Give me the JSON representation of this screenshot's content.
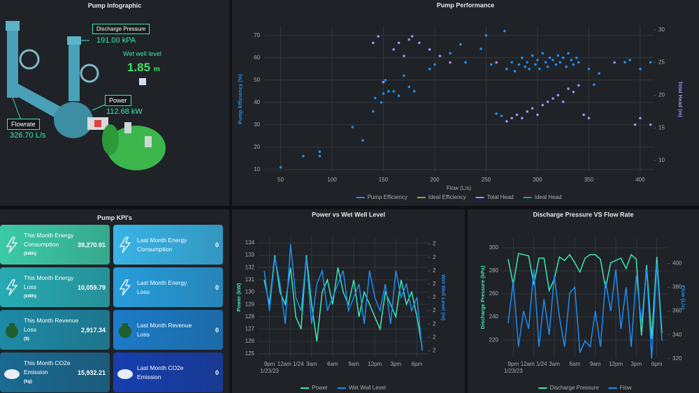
{
  "infographic": {
    "title": "Pump Infographic",
    "discharge": {
      "label": "Discharge Pressure",
      "value": "191.00",
      "unit": "kPA"
    },
    "wetwell": {
      "label": "Wet well level",
      "value": "1.85",
      "unit": "m"
    },
    "power": {
      "label": "Power",
      "value": "112.68",
      "unit": "kW"
    },
    "flow": {
      "label": "Flowrate",
      "value": "326.70",
      "unit": "L/s"
    }
  },
  "kpis": {
    "title": "Pump KPI's",
    "cards": [
      {
        "label": "This Month Energy Consumption",
        "unit": "(kWh)",
        "value": "39,270.91"
      },
      {
        "label": "Last Month Energy Consumption",
        "value": "0"
      },
      {
        "label": "This Month Energy Loss",
        "unit": "(kWh)",
        "value": "10,059.79"
      },
      {
        "label": "Last Month Energy Loss",
        "value": "0"
      },
      {
        "label": "This Month Revenue Loss",
        "unit": "($)",
        "value": "2,917.34"
      },
      {
        "label": "Last Month Revenue Loss",
        "value": "0"
      },
      {
        "label": "This Month CO2e Emission",
        "unit": "(kg)",
        "value": "15,932.21"
      },
      {
        "label": "Last Month CO2e Emission",
        "value": "0"
      }
    ]
  },
  "chart_data": [
    {
      "type": "scatter",
      "title": "Pump Performance",
      "xlabel": "Flow (L/s)",
      "ylabel": "Pump Efficiency (%)",
      "y2label": "Total Head (m)",
      "xlim": [
        34,
        413
      ],
      "xticks": [
        50,
        100,
        150,
        200,
        250,
        300,
        350,
        400
      ],
      "ylim": [
        9,
        74
      ],
      "yticks": [
        10,
        20,
        30,
        40,
        50,
        60,
        70
      ],
      "y2lim": [
        8.3,
        30.5
      ],
      "y2ticks": [
        10,
        15,
        20,
        25,
        30
      ],
      "grid": true,
      "series": [
        {
          "name": "Pump Efficiency",
          "color": "#1f8ef1",
          "x": [
            50,
            72,
            88,
            88,
            120,
            130,
            140,
            142,
            148,
            150,
            152,
            155,
            160,
            165,
            170,
            175,
            180,
            195,
            200,
            215,
            225,
            230,
            245,
            250,
            255,
            260,
            265,
            268,
            270,
            275,
            278,
            282,
            285,
            288,
            290,
            292,
            295,
            298,
            300,
            302,
            305,
            308,
            310,
            312,
            315,
            318,
            320,
            322,
            325,
            328,
            330,
            333,
            335,
            338,
            340,
            350,
            355,
            360,
            385,
            390,
            400,
            410
          ],
          "values": [
            11,
            16,
            18,
            16,
            29,
            23,
            36,
            42,
            40,
            44,
            50,
            45,
            45,
            43,
            52,
            47,
            45,
            55,
            57,
            62,
            66,
            58,
            64,
            70,
            57,
            35,
            34,
            72,
            55,
            58,
            54,
            57,
            60,
            56,
            58,
            55,
            61,
            57,
            59,
            55,
            62,
            58,
            56,
            60,
            59,
            57,
            61,
            58,
            60,
            56,
            62,
            59,
            57,
            60,
            58,
            55,
            48,
            53,
            58,
            59,
            55,
            58
          ]
        },
        {
          "name": "Ideal Efficiency",
          "color": "#b8943a"
        },
        {
          "name": "Total Head",
          "color": "#a78bfa",
          "axis": "y2",
          "x": [
            140,
            145,
            150,
            160,
            165,
            170,
            175,
            178,
            185,
            195,
            205,
            215,
            260,
            270,
            275,
            280,
            285,
            290,
            295,
            300,
            305,
            310,
            315,
            320,
            325,
            330,
            335,
            340,
            345,
            350,
            375,
            395,
            400,
            410
          ],
          "values": [
            28,
            29,
            22,
            27,
            28,
            26,
            28.5,
            29,
            28,
            27,
            26,
            25,
            25,
            16,
            16.5,
            17,
            16.5,
            17.5,
            18,
            17,
            18.5,
            19,
            19.5,
            20,
            19,
            21,
            20.5,
            21.5,
            17,
            16.5,
            25,
            15.5,
            16.5,
            15.5
          ]
        },
        {
          "name": "Ideal Head",
          "color": "#2e9c8a",
          "axis": "y2"
        }
      ]
    },
    {
      "type": "line",
      "title": "Power vs Wet Well Level",
      "ylabel": "Power (kW)",
      "y2label": "Wet Well Level (m)",
      "categories": [
        null,
        "9pm 1/23/23",
        null,
        null,
        null,
        "12am 1/24",
        null,
        null,
        null,
        "3am",
        null,
        null,
        null,
        "6am",
        null,
        null,
        null,
        "9am",
        null,
        null,
        null,
        "12pm",
        null,
        null,
        null,
        "3pm",
        null,
        null,
        null,
        "6pm",
        null
      ],
      "ylim": [
        124.7,
        134.45
      ],
      "yticks": [
        125,
        126,
        127,
        128,
        129,
        130,
        131,
        132,
        133,
        134
      ],
      "y2lim": [
        1.55,
        2.45
      ],
      "y2ticks": [
        {
          "value": 1.6,
          "label": "2"
        },
        {
          "value": 1.7,
          "label": "2"
        },
        {
          "value": 1.8,
          "label": "2"
        },
        {
          "value": 1.9,
          "label": "2"
        },
        {
          "value": 2.0,
          "label": "2"
        },
        {
          "value": 2.1,
          "label": "2"
        },
        {
          "value": 2.2,
          "label": "2"
        },
        {
          "value": 2.3,
          "label": "2"
        },
        {
          "value": 2.4,
          "label": "2"
        }
      ],
      "grid": true,
      "series": [
        {
          "name": "Power",
          "color": "#3ee8b5",
          "values": [
            131,
            129,
            133,
            130,
            129,
            132,
            128,
            127,
            133,
            129,
            126,
            130,
            131,
            129,
            132,
            130,
            129,
            131,
            128,
            130,
            129,
            128,
            127,
            130,
            129,
            128,
            131,
            129,
            130,
            128,
            125.5
          ]
        },
        {
          "name": "Wet Well Level",
          "color": "#1f8ef1",
          "axis": "y2",
          "values": [
            2.2,
            1.9,
            2.3,
            2.1,
            1.8,
            2.4,
            2.0,
            1.9,
            2.3,
            1.8,
            2.1,
            2.2,
            1.9,
            2.0,
            2.1,
            2.2,
            1.9,
            2.0,
            2.1,
            1.8,
            2.2,
            2.0,
            1.9,
            2.1,
            1.8,
            2.2,
            2.0,
            2.1,
            1.9,
            2.0,
            1.6
          ]
        }
      ]
    },
    {
      "type": "line",
      "title": "Discharge Pressure VS Flow Rate",
      "ylabel": "Discharge Pressure (kPa)",
      "y2label": "Flow (L/s)",
      "categories": [
        null,
        "9pm 1/23/23",
        null,
        null,
        null,
        "12am 1/24",
        null,
        null,
        null,
        "3am",
        null,
        null,
        null,
        "6am",
        null,
        null,
        null,
        "9am",
        null,
        null,
        null,
        "12pm",
        null,
        null,
        null,
        "3pm",
        null,
        null,
        null,
        "6pm",
        null
      ],
      "ylim": [
        205,
        309
      ],
      "yticks": [
        220,
        240,
        260,
        280,
        300
      ],
      "y2lim": [
        321,
        422
      ],
      "y2ticks": [
        320,
        340,
        360,
        380,
        400
      ],
      "grid": true,
      "series": [
        {
          "name": "Discharge Pressure",
          "color": "#3ee8b5",
          "values": [
            290,
            268,
            295,
            294,
            293,
            268,
            291,
            291,
            263,
            273,
            292,
            289,
            294,
            287,
            279,
            291,
            294,
            294,
            290,
            265,
            287,
            289,
            291,
            282,
            294,
            290,
            224,
            285,
            221,
            292,
            226
          ]
        },
        {
          "name": "Flow",
          "color": "#1f8ef1",
          "axis": "y2",
          "values": [
            350,
            385,
            330,
            360,
            345,
            395,
            330,
            370,
            340,
            390,
            355,
            330,
            375,
            380,
            325,
            335,
            330,
            360,
            330,
            385,
            360,
            395,
            345,
            380,
            330,
            390,
            350,
            395,
            320,
            400,
            335
          ]
        }
      ]
    }
  ]
}
